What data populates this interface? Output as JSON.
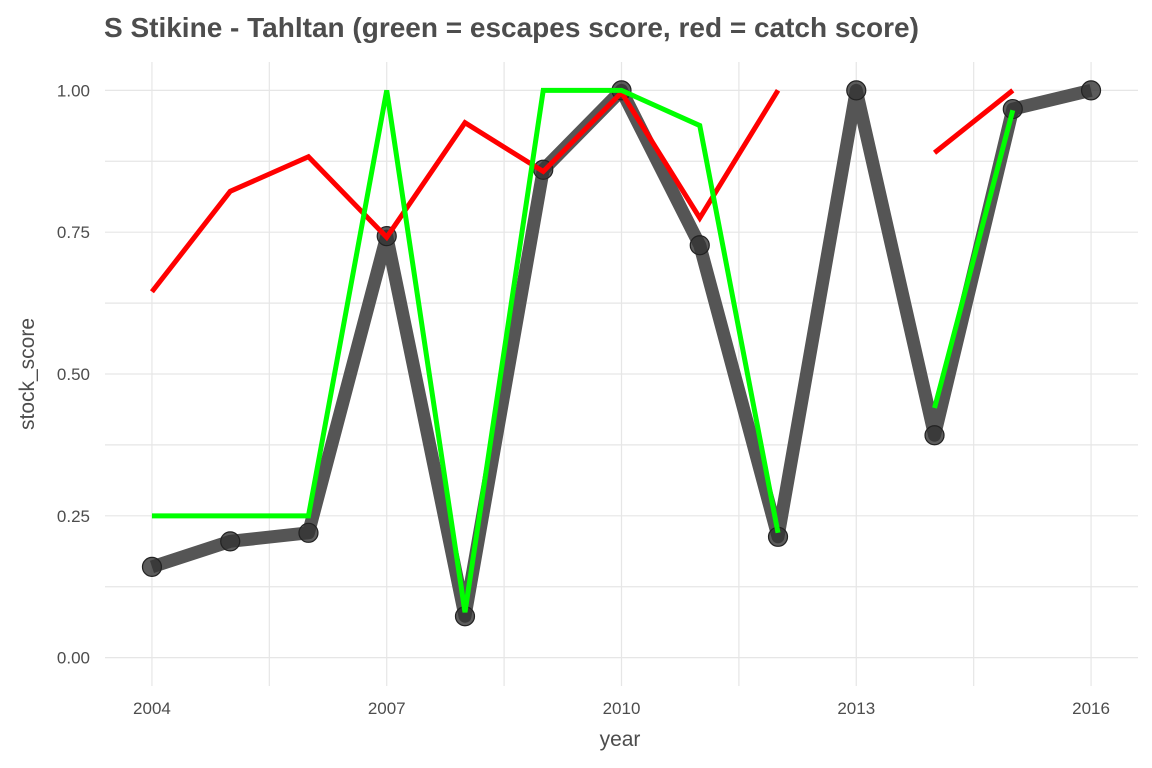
{
  "chart_data": {
    "type": "line",
    "title": "S Stikine - Tahltan (green = escapes score, red = catch score)",
    "xlabel": "year",
    "ylabel": "stock_score",
    "xlim": [
      2003.4,
      2016.6
    ],
    "ylim": [
      -0.05,
      1.05
    ],
    "x_ticks": [
      "2004",
      "2007",
      "2010",
      "2013",
      "2016"
    ],
    "y_ticks": [
      "0.00",
      "0.25",
      "0.50",
      "0.75",
      "1.00"
    ],
    "grid": true,
    "colors": {
      "stock": "#555555",
      "escapes": "#00ff00",
      "catch": "#ff0000"
    },
    "series": [
      {
        "key": "stock",
        "style": "thick-line-with-points",
        "x": [
          2004,
          2005,
          2006,
          2007,
          2008,
          2009,
          2010,
          2011,
          2012,
          2013,
          2014,
          2015,
          2016
        ],
        "values": [
          0.16,
          0.205,
          0.22,
          0.743,
          0.073,
          0.86,
          1.0,
          0.727,
          0.213,
          1.0,
          0.392,
          0.967,
          1.0
        ]
      },
      {
        "key": "escapes",
        "style": "line",
        "x": [
          2004,
          2005,
          2006,
          2007,
          2008,
          2009,
          2010,
          2011,
          2012,
          2013,
          2014,
          2015,
          2016
        ],
        "values": [
          0.25,
          0.25,
          0.25,
          1.0,
          0.08,
          1.0,
          1.0,
          0.938,
          0.22,
          null,
          0.44,
          0.965,
          null
        ]
      },
      {
        "key": "catch",
        "style": "line",
        "x": [
          2004,
          2005,
          2006,
          2007,
          2008,
          2009,
          2010,
          2011,
          2012,
          2013,
          2014,
          2015,
          2016
        ],
        "values": [
          0.645,
          0.822,
          0.883,
          0.741,
          0.943,
          0.857,
          0.996,
          0.775,
          1.0,
          null,
          0.89,
          1.0,
          null
        ]
      }
    ]
  }
}
